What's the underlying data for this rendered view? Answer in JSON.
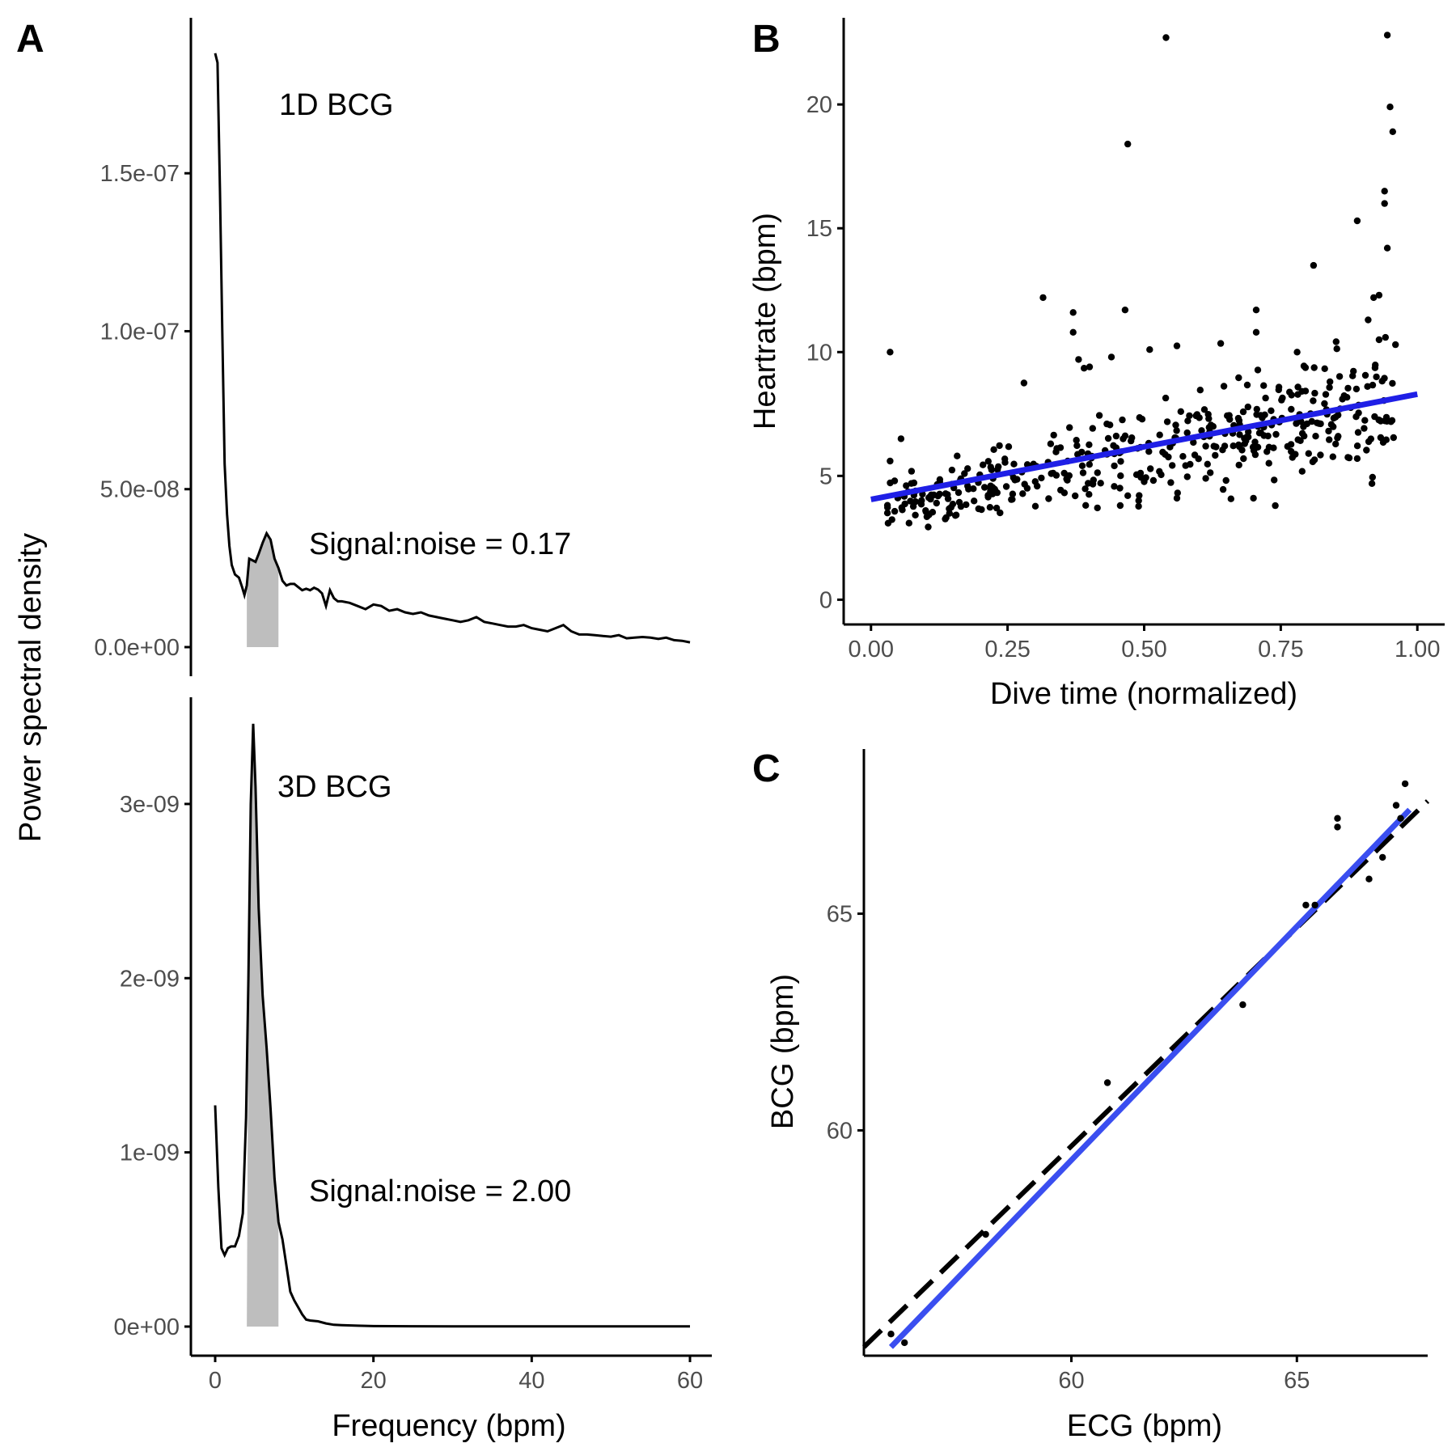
{
  "panels": {
    "A": {
      "letter": "A",
      "xlabel": "Frequency (bpm)",
      "ylabel": "Power spectral density"
    },
    "B": {
      "letter": "B",
      "xlabel": "Dive time (normalized)",
      "ylabel": "Heartrate (bpm)"
    },
    "C": {
      "letter": "C",
      "xlabel": "ECG (bpm)",
      "ylabel": "BCG (bpm)"
    }
  },
  "chart_data": [
    {
      "id": "A-top",
      "type": "line",
      "annotation_name": "1D BCG",
      "annotation_snr": "Signal:noise = 0.17",
      "xlim": [
        0,
        60
      ],
      "ylim": [
        0,
        1.9e-07
      ],
      "y_ticks": [
        0,
        5e-08,
        1e-07,
        1.5e-07
      ],
      "y_tick_labels": [
        "0.0e+00",
        "5.0e-08",
        "1.0e-07",
        "1.5e-07"
      ],
      "shaded_band": [
        4,
        8
      ],
      "x": [
        0,
        0.3,
        0.6,
        0.9,
        1.2,
        1.5,
        1.8,
        2.1,
        2.5,
        3.0,
        3.4,
        3.7,
        4.0,
        4.3,
        4.7,
        5.1,
        5.5,
        6.0,
        6.5,
        7.0,
        7.5,
        8.0,
        8.5,
        9.0,
        9.5,
        10.0,
        10.5,
        11.0,
        11.5,
        12.0,
        12.5,
        13.0,
        13.5,
        14.0,
        14.5,
        15.0,
        15.5,
        16.0,
        17.0,
        18.0,
        19.0,
        20.0,
        21.0,
        22.0,
        23.0,
        24.0,
        25.0,
        26.0,
        27.0,
        28.0,
        29.0,
        30.0,
        31.0,
        32.0,
        33.0,
        34.0,
        35.0,
        36.0,
        37.0,
        38.0,
        39.0,
        40.0,
        41.0,
        42.0,
        43.0,
        44.0,
        45.0,
        46.0,
        47.0,
        48.0,
        49.0,
        50.0,
        51.0,
        52.0,
        53.0,
        54.0,
        55.0,
        56.0,
        57.0,
        58.0,
        59.0,
        60.0
      ],
      "y": [
        1.88e-07,
        1.85e-07,
        1.45e-07,
        1e-07,
        5.8e-08,
        4.2e-08,
        3.2e-08,
        2.6e-08,
        2.3e-08,
        2.2e-08,
        1.9e-08,
        1.65e-08,
        1.95e-08,
        2.8e-08,
        2.75e-08,
        2.7e-08,
        2.95e-08,
        3.3e-08,
        3.6e-08,
        3.4e-08,
        2.8e-08,
        2.5e-08,
        2.1e-08,
        1.95e-08,
        2e-08,
        2e-08,
        1.9e-08,
        1.8e-08,
        1.85e-08,
        1.8e-08,
        1.88e-08,
        1.82e-08,
        1.7e-08,
        1.3e-08,
        1.8e-08,
        1.55e-08,
        1.45e-08,
        1.45e-08,
        1.4e-08,
        1.3e-08,
        1.2e-08,
        1.35e-08,
        1.3e-08,
        1.15e-08,
        1.2e-08,
        1.1e-08,
        1.05e-08,
        1.1e-08,
        1e-08,
        9.5e-09,
        9e-09,
        8.5e-09,
        8e-09,
        8.5e-09,
        9.5e-09,
        8e-09,
        7.5e-09,
        7e-09,
        6.5e-09,
        6.5e-09,
        7e-09,
        6e-09,
        5.5e-09,
        5e-09,
        6e-09,
        7e-09,
        5e-09,
        4e-09,
        4e-09,
        3.8e-09,
        3.5e-09,
        3.3e-09,
        3.8e-09,
        2.8e-09,
        3e-09,
        3.2e-09,
        3e-09,
        2.6e-09,
        3e-09,
        2.2e-09,
        2e-09,
        1.5e-09
      ]
    },
    {
      "id": "A-bottom",
      "type": "line",
      "annotation_name": "3D BCG",
      "annotation_snr": "Signal:noise = 2.00",
      "xlim": [
        0,
        60
      ],
      "ylim": [
        0,
        3.45e-09
      ],
      "x_ticks": [
        0,
        20,
        40,
        60
      ],
      "y_ticks": [
        0,
        1e-09,
        2e-09,
        3e-09
      ],
      "y_tick_labels": [
        "0e+00",
        "1e-09",
        "2e-09",
        "3e-09"
      ],
      "shaded_band": [
        4,
        8
      ],
      "x": [
        0,
        0.4,
        0.8,
        1.2,
        1.6,
        2.0,
        2.5,
        3.0,
        3.5,
        3.9,
        4.2,
        4.5,
        4.8,
        5.1,
        5.5,
        6.0,
        6.5,
        7.0,
        7.5,
        8.0,
        8.5,
        9.0,
        9.5,
        10.0,
        10.5,
        11.0,
        11.5,
        12.0,
        13.0,
        14.0,
        15.0,
        16.0,
        18.0,
        20.0,
        25.0,
        30.0,
        35.0,
        40.0,
        45.0,
        50.0,
        55.0,
        60.0
      ],
      "y": [
        1.27e-09,
        8e-10,
        4.5e-10,
        4.1e-10,
        4.5e-10,
        4.6e-10,
        4.6e-10,
        5.2e-10,
        6.5e-10,
        1.2e-09,
        2e-09,
        3e-09,
        3.46e-09,
        3.1e-09,
        2.4e-09,
        1.9e-09,
        1.6e-09,
        1.25e-09,
        8.5e-10,
        6e-10,
        5e-10,
        3.5e-10,
        2e-10,
        1.5e-10,
        1.1e-10,
        7e-11,
        4e-11,
        3.5e-11,
        3e-11,
        1.8e-11,
        1e-11,
        8e-12,
        5e-12,
        3e-12,
        2e-12,
        1e-12,
        1e-12,
        1e-12,
        1e-12,
        1e-12,
        1e-12,
        1e-12
      ]
    },
    {
      "id": "B",
      "type": "scatter",
      "xlim": [
        -0.05,
        1.05
      ],
      "ylim": [
        -1,
        23.5
      ],
      "x_ticks": [
        0,
        0.25,
        0.5,
        0.75,
        1.0
      ],
      "x_tick_labels": [
        "0.00",
        "0.25",
        "0.50",
        "0.75",
        "1.00"
      ],
      "y_ticks": [
        0,
        5,
        10,
        15,
        20
      ],
      "trend_line": {
        "x": [
          0,
          1.0
        ],
        "y": [
          4.05,
          8.3
        ],
        "color": "#1f1fe6"
      },
      "outliers": [
        [
          0.035,
          10.0
        ],
        [
          0.055,
          6.5
        ],
        [
          0.28,
          8.75
        ],
        [
          0.315,
          12.2
        ],
        [
          0.37,
          11.6
        ],
        [
          0.37,
          10.8
        ],
        [
          0.38,
          9.7
        ],
        [
          0.39,
          9.35
        ],
        [
          0.4,
          9.4
        ],
        [
          0.44,
          9.8
        ],
        [
          0.465,
          11.7
        ],
        [
          0.47,
          18.4
        ],
        [
          0.51,
          10.1
        ],
        [
          0.54,
          22.7
        ],
        [
          0.56,
          10.25
        ],
        [
          0.64,
          10.35
        ],
        [
          0.705,
          11.7
        ],
        [
          0.705,
          10.8
        ],
        [
          0.78,
          10.0
        ],
        [
          0.81,
          13.5
        ],
        [
          0.84,
          8.8
        ],
        [
          0.89,
          15.3
        ],
        [
          0.92,
          12.2
        ],
        [
          0.93,
          12.3
        ],
        [
          0.94,
          16.5
        ],
        [
          0.94,
          16.0
        ],
        [
          0.945,
          14.2
        ],
        [
          0.945,
          22.8
        ],
        [
          0.95,
          19.9
        ],
        [
          0.955,
          18.9
        ],
        [
          0.035,
          5.6
        ],
        [
          0.12,
          3.9
        ],
        [
          0.23,
          3.7
        ],
        [
          0.47,
          4.2
        ],
        [
          0.49,
          4.0
        ],
        [
          0.56,
          4.1
        ],
        [
          0.7,
          4.1
        ],
        [
          0.74,
          3.8
        ],
        [
          0.89,
          5.7
        ],
        [
          0.91,
          11.3
        ],
        [
          0.93,
          10.5
        ],
        [
          0.96,
          10.3
        ]
      ],
      "points_generated": {
        "count": 420,
        "slope": 4.25,
        "intercept": 4.05,
        "x_start": 0.03,
        "x_end": 0.96
      }
    },
    {
      "id": "C",
      "type": "scatter",
      "xlim": [
        55.4,
        67.9
      ],
      "ylim": [
        54.8,
        68.8
      ],
      "x_ticks": [
        60,
        65
      ],
      "y_ticks": [
        60,
        65
      ],
      "x": [
        56.0,
        56.3,
        58.1,
        60.8,
        63.8,
        65.2,
        65.4,
        65.9,
        65.9,
        66.6,
        66.9,
        67.2,
        67.4,
        67.3
      ],
      "y": [
        55.3,
        55.1,
        57.6,
        61.1,
        62.9,
        65.2,
        65.2,
        67.0,
        67.2,
        65.8,
        66.3,
        67.5,
        68.0,
        67.2
      ],
      "identity_line": {
        "x": [
          55.4,
          67.9
        ],
        "y": [
          55.0,
          67.6
        ],
        "style": "dashed",
        "color": "#000000"
      },
      "fit_line": {
        "x": [
          56.0,
          67.5
        ],
        "y": [
          55.0,
          67.4
        ],
        "color": "#3a4ef0"
      }
    }
  ]
}
